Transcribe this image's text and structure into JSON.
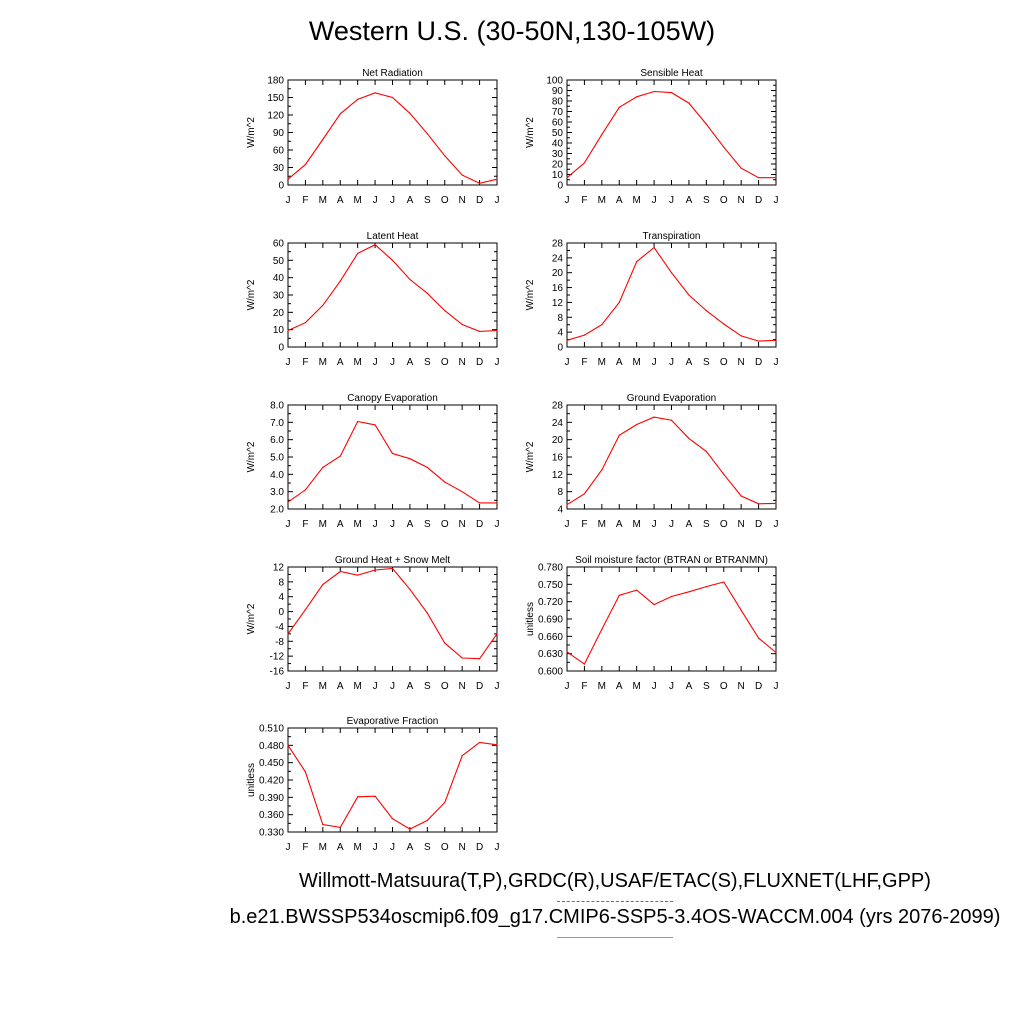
{
  "title": "Western U.S. (30-50N,130-105W)",
  "footer": {
    "line1": "Willmott-Matsuura(T,P),GRDC(R),USAF/ETAC(S),FLUXNET(LHF,GPP)",
    "line2": "b.e21.BWSSP534oscmip6.f09_g17.CMIP6-SSP5-3.4OS-WACCM.004 (yrs 2076-2099)"
  },
  "colors": {
    "series": "#ff0000",
    "legend_dashed": "#5a5aff",
    "legend_solid": "#ff6a6a"
  },
  "chart_data": [
    {
      "type": "line",
      "title": "Net Radiation",
      "ylabel": "W/m^2",
      "categories": [
        "J",
        "F",
        "M",
        "A",
        "M",
        "J",
        "J",
        "A",
        "S",
        "O",
        "N",
        "D",
        "J"
      ],
      "ylim": [
        0,
        180
      ],
      "yticks": [
        "0",
        "30",
        "60",
        "90",
        "120",
        "150",
        "180"
      ],
      "values": [
        10,
        35,
        78,
        122,
        147,
        158,
        150,
        123,
        88,
        50,
        17,
        3,
        10
      ]
    },
    {
      "type": "line",
      "title": "Sensible Heat",
      "ylabel": "W/m^2",
      "categories": [
        "J",
        "F",
        "M",
        "A",
        "M",
        "J",
        "J",
        "A",
        "S",
        "O",
        "N",
        "D",
        "J"
      ],
      "ylim": [
        0,
        100
      ],
      "yticks": [
        "0",
        "10",
        "20",
        "30",
        "40",
        "50",
        "60",
        "70",
        "80",
        "90",
        "100"
      ],
      "values": [
        7,
        21,
        48,
        74,
        84,
        89,
        88,
        78,
        58,
        36,
        16,
        7,
        7
      ]
    },
    {
      "type": "line",
      "title": "Latent Heat",
      "ylabel": "W/m^2",
      "categories": [
        "J",
        "F",
        "M",
        "A",
        "M",
        "J",
        "J",
        "A",
        "S",
        "O",
        "N",
        "D",
        "J"
      ],
      "ylim": [
        0,
        60
      ],
      "yticks": [
        "0",
        "10",
        "20",
        "30",
        "40",
        "50",
        "60"
      ],
      "values": [
        9.5,
        14,
        24,
        38,
        54,
        59,
        50,
        39,
        31,
        21,
        13,
        9,
        9.5
      ]
    },
    {
      "type": "line",
      "title": "Transpiration",
      "ylabel": "W/m^2",
      "categories": [
        "J",
        "F",
        "M",
        "A",
        "M",
        "J",
        "J",
        "A",
        "S",
        "O",
        "N",
        "D",
        "J"
      ],
      "ylim": [
        0,
        28
      ],
      "yticks": [
        "0",
        "4",
        "8",
        "12",
        "16",
        "20",
        "24",
        "28"
      ],
      "values": [
        1.8,
        3.2,
        6,
        12,
        23,
        26.8,
        20,
        14,
        9.8,
        6.2,
        3,
        1.6,
        1.8
      ]
    },
    {
      "type": "line",
      "title": "Canopy Evaporation",
      "ylabel": "W/m^2",
      "categories": [
        "J",
        "F",
        "M",
        "A",
        "M",
        "J",
        "J",
        "A",
        "S",
        "O",
        "N",
        "D",
        "J"
      ],
      "ylim": [
        2,
        8
      ],
      "yticks": [
        "2.0",
        "3.0",
        "4.0",
        "5.0",
        "6.0",
        "7.0",
        "8.0"
      ],
      "values": [
        2.4,
        3.1,
        4.4,
        5.05,
        7.05,
        6.85,
        5.2,
        4.9,
        4.4,
        3.55,
        3.0,
        2.35,
        2.35
      ]
    },
    {
      "type": "line",
      "title": "Ground Evaporation",
      "ylabel": "W/m^2",
      "categories": [
        "J",
        "F",
        "M",
        "A",
        "M",
        "J",
        "J",
        "A",
        "S",
        "O",
        "N",
        "D",
        "J"
      ],
      "ylim": [
        4,
        28
      ],
      "yticks": [
        "4",
        "8",
        "12",
        "16",
        "20",
        "24",
        "28"
      ],
      "values": [
        5,
        7.5,
        13,
        21,
        23.5,
        25.2,
        24.5,
        20.3,
        17.3,
        12,
        7,
        5.2,
        5.3
      ]
    },
    {
      "type": "line",
      "title": "Ground Heat + Snow Melt",
      "ylabel": "W/m^2",
      "categories": [
        "J",
        "F",
        "M",
        "A",
        "M",
        "J",
        "J",
        "A",
        "S",
        "O",
        "N",
        "D",
        "J"
      ],
      "ylim": [
        -16,
        12
      ],
      "yticks": [
        "-16",
        "-12",
        "-8",
        "-4",
        "0",
        "4",
        "8",
        "12"
      ],
      "values": [
        -6,
        0.5,
        7.3,
        10.8,
        9.8,
        11.2,
        11.6,
        6,
        -0.4,
        -8.5,
        -12.5,
        -12.7,
        -6
      ]
    },
    {
      "type": "line",
      "title": "Soil moisture factor (BTRAN or BTRANMN)",
      "ylabel": "unitless",
      "categories": [
        "J",
        "F",
        "M",
        "A",
        "M",
        "J",
        "J",
        "A",
        "S",
        "O",
        "N",
        "D",
        "J"
      ],
      "ylim": [
        0.6,
        0.78
      ],
      "yticks": [
        "0.600",
        "0.630",
        "0.660",
        "0.690",
        "0.720",
        "0.750",
        "0.780"
      ],
      "values": [
        0.633,
        0.612,
        0.672,
        0.731,
        0.74,
        0.715,
        0.729,
        0.737,
        0.746,
        0.754,
        0.705,
        0.657,
        0.632
      ]
    },
    {
      "type": "line",
      "title": "Evaporative Fraction",
      "ylabel": "unitless",
      "categories": [
        "J",
        "F",
        "M",
        "A",
        "M",
        "J",
        "J",
        "A",
        "S",
        "O",
        "N",
        "D",
        "J"
      ],
      "ylim": [
        0.33,
        0.51
      ],
      "yticks": [
        "0.330",
        "0.360",
        "0.390",
        "0.420",
        "0.450",
        "0.480",
        "0.510"
      ],
      "values": [
        0.48,
        0.434,
        0.343,
        0.338,
        0.391,
        0.392,
        0.353,
        0.335,
        0.35,
        0.381,
        0.462,
        0.485,
        0.481
      ]
    }
  ]
}
